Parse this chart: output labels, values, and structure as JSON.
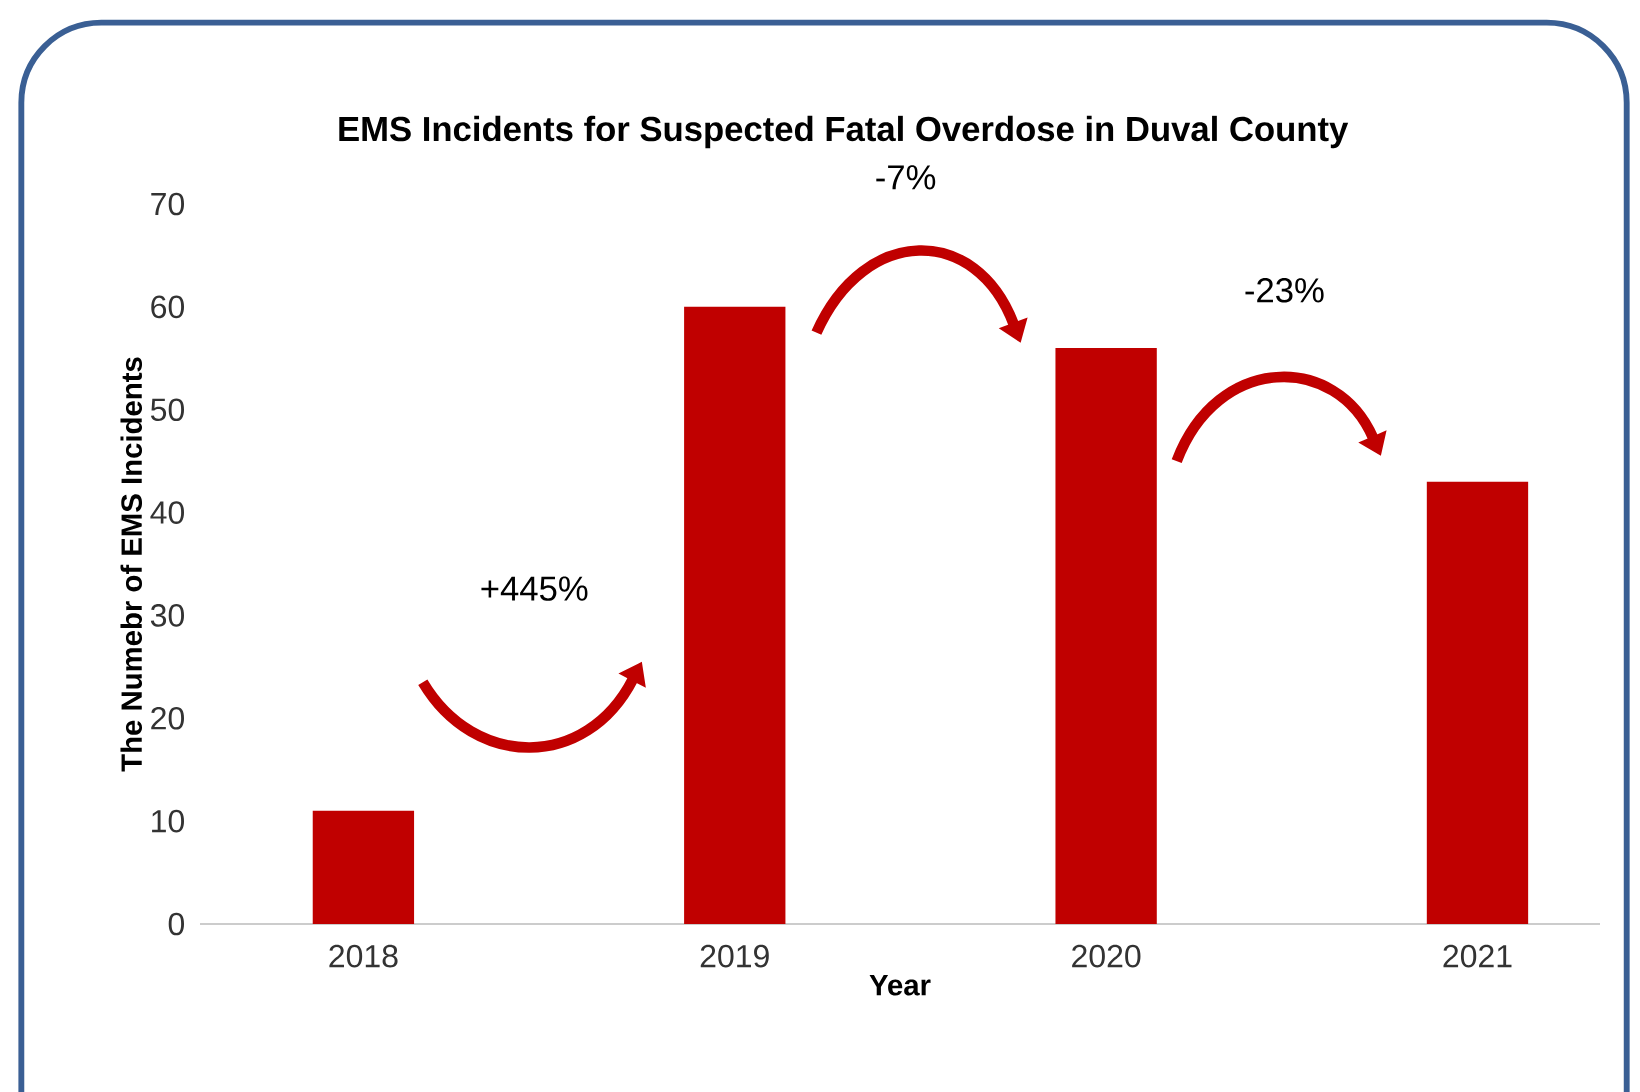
{
  "chart_data": {
    "type": "bar",
    "title": "EMS Incidents for Suspected Fatal Overdose in Duval County",
    "xlabel": "Year",
    "ylabel": "The Numebr of EMS Incidents",
    "categories": [
      "2018",
      "2019",
      "2020",
      "2021"
    ],
    "values": [
      11,
      60,
      56,
      43
    ],
    "color": "#c00000",
    "ylim": [
      0,
      70
    ],
    "yticks": [
      0,
      10,
      20,
      30,
      40,
      50,
      60,
      70
    ],
    "annotations": [
      "+445%",
      "-7%",
      "-23%"
    ]
  }
}
